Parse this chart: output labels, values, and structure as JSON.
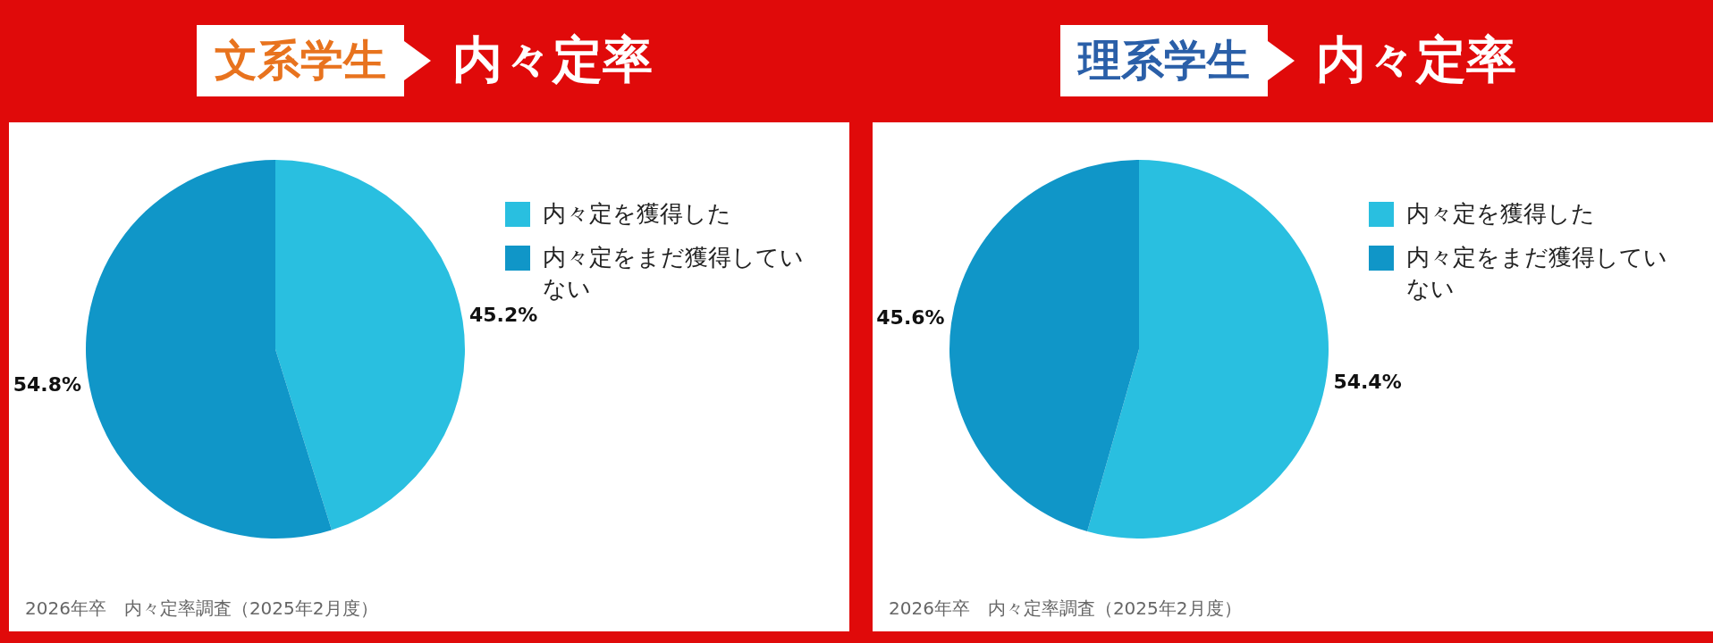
{
  "chart_data": [
    {
      "type": "pie",
      "title": "文系学生",
      "subtitle": "内々定率",
      "categories": [
        "内々定を獲得した",
        "内々定をまだ獲得していない"
      ],
      "values": [
        45.2,
        54.8
      ],
      "colors": [
        "#29bfe0",
        "#1096c8"
      ],
      "value_labels": [
        "45.2%",
        "54.8%"
      ],
      "legend": "right",
      "annotations": [
        "2026年卒　内々定率調査（2025年2月度）"
      ]
    },
    {
      "type": "pie",
      "title": "理系学生",
      "subtitle": "内々定率",
      "categories": [
        "内々定を獲得した",
        "内々定をまだ獲得していない"
      ],
      "values": [
        54.4,
        45.6
      ],
      "colors": [
        "#29bfe0",
        "#1096c8"
      ],
      "value_labels": [
        "54.4%",
        "45.6%"
      ],
      "legend": "right",
      "annotations": [
        "2026年卒　内々定率調査（2025年2月度）"
      ]
    }
  ]
}
